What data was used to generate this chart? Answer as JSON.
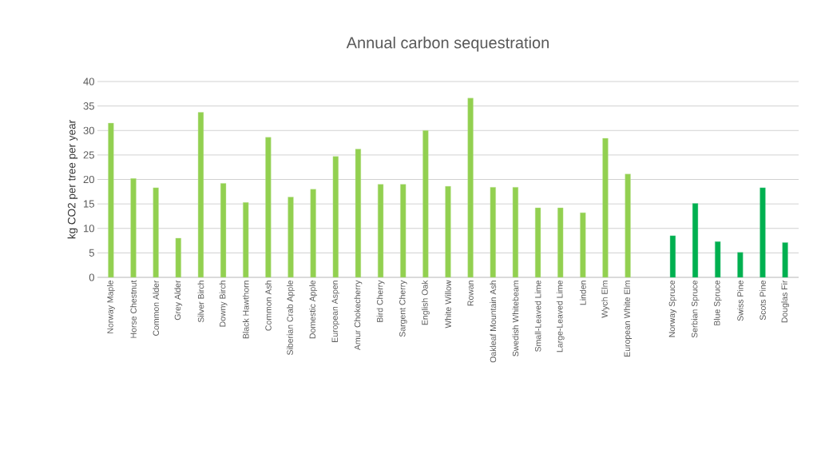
{
  "chart_data": {
    "type": "bar",
    "title": "Annual carbon sequestration",
    "ylabel": "kg CO2  per tree per year",
    "categories": [
      "Norway Maple",
      "Horse Chestnut",
      "Common Alder",
      "Grey Alder",
      "Silver Birch",
      "Downy Birch",
      "Black Hawthorn",
      "Common Ash",
      "Siberian Crab Apple",
      "Domestic Apple",
      "European Aspen",
      "Amur Chokecherry",
      "Bird Cherry",
      "Sargent Cherry",
      "English Oak",
      "White Willow",
      "Rowan",
      "Oakleaf Mountain Ash",
      "Swedish Whitebeam",
      "Small-Leaved Lime",
      "Large-Leaved Lime",
      "Linden",
      "Wych Elm",
      "European White Elm",
      null,
      "Norway Spruce",
      "Serbian Spruce",
      "Blue Spruce",
      "Swiss Pine",
      "Scots Pine",
      "Douglas Fir"
    ],
    "values": [
      31.5,
      20.2,
      18.3,
      8.0,
      33.7,
      19.2,
      15.3,
      28.6,
      16.4,
      18.0,
      24.7,
      26.2,
      19.0,
      19.0,
      30.0,
      18.6,
      36.6,
      18.4,
      18.4,
      14.2,
      14.2,
      13.2,
      28.4,
      21.1,
      null,
      8.5,
      15.1,
      7.3,
      5.1,
      18.3,
      7.1
    ],
    "colors": [
      "#92d050",
      "#92d050",
      "#92d050",
      "#92d050",
      "#92d050",
      "#92d050",
      "#92d050",
      "#92d050",
      "#92d050",
      "#92d050",
      "#92d050",
      "#92d050",
      "#92d050",
      "#92d050",
      "#92d050",
      "#92d050",
      "#92d050",
      "#92d050",
      "#92d050",
      "#92d050",
      "#92d050",
      "#92d050",
      "#92d050",
      "#92d050",
      "#92d050",
      "#00b050",
      "#00b050",
      "#00b050",
      "#00b050",
      "#00b050",
      "#00b050"
    ],
    "ylim": [
      0,
      40
    ],
    "yticks": [
      0,
      5,
      10,
      15,
      20,
      25,
      30,
      35,
      40
    ],
    "grid": "y"
  }
}
